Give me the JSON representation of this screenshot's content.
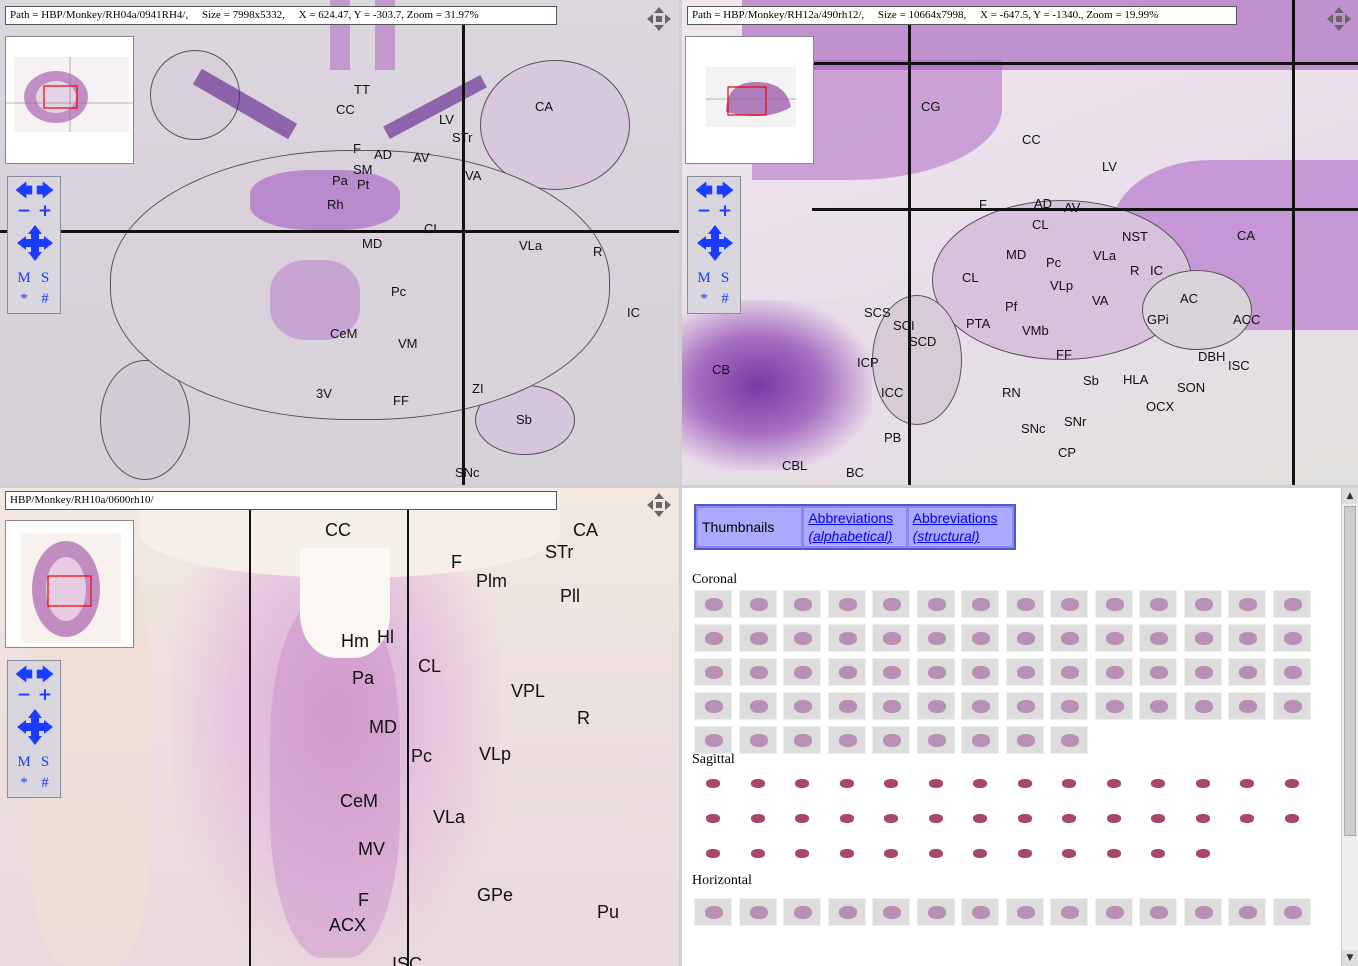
{
  "panel1": {
    "path": "Path = HBP/Monkey/RH04a/0941RH4/,",
    "size": "Size = 7998x5332,",
    "coords": "X = 624.47,  Y = -303.7,  Zoom = 31.97%",
    "labels": [
      "TT",
      "CC",
      "LV",
      "CA",
      "STr",
      "F",
      "AD",
      "AV",
      "SM",
      "Pa",
      "Pt",
      "VA",
      "Rh",
      "CL",
      "MD",
      "VLa",
      "R",
      "Pc",
      "IC",
      "CeM",
      "VM",
      "3V",
      "FF",
      "ZI",
      "Sb",
      "SNc"
    ]
  },
  "panel2": {
    "path": "Path = HBP/Monkey/RH12a/490rh12/,",
    "size": "Size = 10664x7998,",
    "coords": "X = -647.5,  Y = -1340.,  Zoom = 19.99%",
    "labels": [
      "CG",
      "CC",
      "LV",
      "F",
      "AD",
      "AV",
      "CL",
      "NST",
      "CA",
      "MD",
      "Pc",
      "VLa",
      "R",
      "IC",
      "CL",
      "VLp",
      "Pf",
      "AC",
      "SCS",
      "SCI",
      "SCD",
      "PTA",
      "VMb",
      "VA",
      "GPi",
      "ACC",
      "ICP",
      "CB",
      "FF",
      "DBH",
      "ISC",
      "ICC",
      "RN",
      "Sb",
      "HLA",
      "SON",
      "OCX",
      "SNc",
      "SNr",
      "PB",
      "CP",
      "CBL",
      "BC"
    ]
  },
  "panel3": {
    "path": "HBP/Monkey/RH10a/0600rh10/",
    "labels": [
      "CC",
      "CA",
      "STr",
      "F",
      "Plm",
      "Pll",
      "Hm",
      "Hl",
      "Pa",
      "CL",
      "VPL",
      "R",
      "MD",
      "Pc",
      "VLp",
      "CeM",
      "VLa",
      "MV",
      "GPe",
      "F",
      "Pu",
      "ACX",
      "ISC"
    ]
  },
  "controls": {
    "m": "M",
    "s": "S",
    "star": "*",
    "hash": "#"
  },
  "panel4": {
    "tab_thumbnails": "Thumbnails",
    "tab_abbr_alpha_1": "Abbreviations",
    "tab_abbr_alpha_2": "(alphabetical)",
    "tab_abbr_struct_1": "Abbreviations",
    "tab_abbr_struct_2": "(structural)",
    "section_coronal": "Coronal",
    "section_sagittal": "Sagittal",
    "section_horizontal": "Horizontal",
    "coronal_rows": [
      14,
      14,
      14,
      14,
      9
    ],
    "sagittal_rows": [
      14,
      14,
      12
    ],
    "horizontal_rows": [
      14
    ]
  },
  "icons": {
    "move": "move-arrows-icon",
    "left": "arrow-left-icon",
    "right": "arrow-right-icon",
    "zoom_out": "zoom-out-icon",
    "zoom_in": "zoom-in-icon",
    "pan": "pan-cross-icon"
  },
  "colors": {
    "stain": "#a050c0",
    "link": "#0000ee",
    "tab_bg": "#aaaaff",
    "ctrl_icon": "#1b3cff"
  }
}
